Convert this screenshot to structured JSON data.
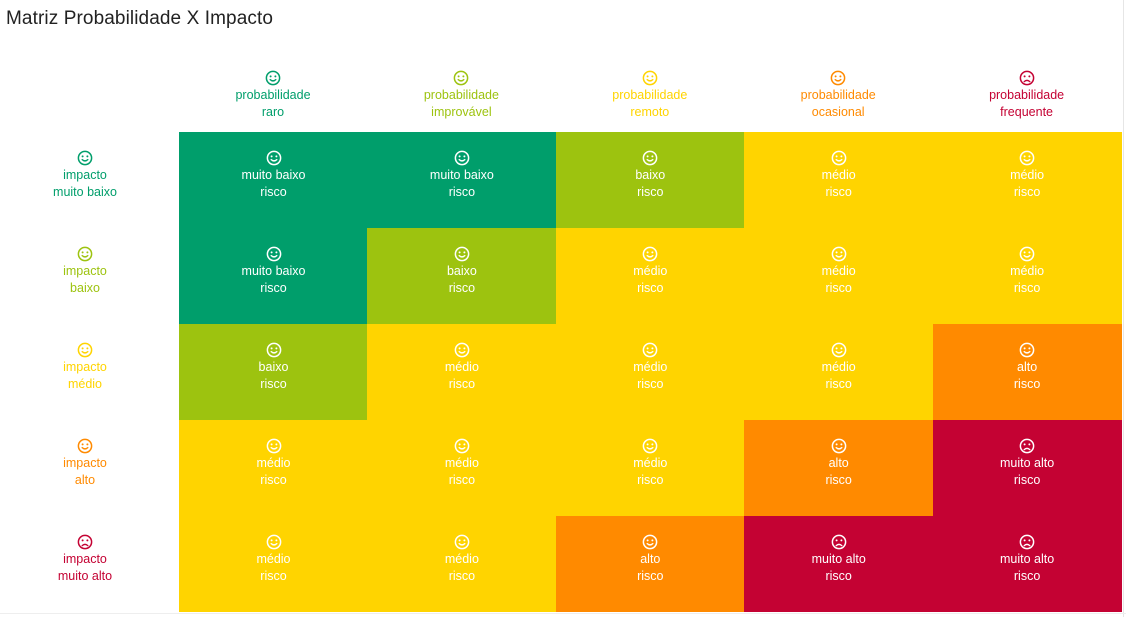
{
  "title": "Matriz Probabilidade X Impacto",
  "colors": {
    "muito_baixo": "#009E6B",
    "baixo": "#9DC30F",
    "medio": "#FFD400",
    "alto": "#FF8A00",
    "muito_alto": "#C40233"
  },
  "columns": [
    {
      "line1": "probabilidade",
      "line2": "raro",
      "level": "muito_baixo",
      "face": "smile"
    },
    {
      "line1": "probabilidade",
      "line2": "improvável",
      "level": "baixo",
      "face": "smile"
    },
    {
      "line1": "probabilidade",
      "line2": "remoto",
      "level": "medio",
      "face": "smile"
    },
    {
      "line1": "probabilidade",
      "line2": "ocasional",
      "level": "alto",
      "face": "smile"
    },
    {
      "line1": "probabilidade",
      "line2": "frequente",
      "level": "muito_alto",
      "face": "frown"
    }
  ],
  "rows": [
    {
      "line1": "impacto",
      "line2": "muito baixo",
      "level": "muito_baixo",
      "face": "smile"
    },
    {
      "line1": "impacto",
      "line2": "baixo",
      "level": "baixo",
      "face": "smile"
    },
    {
      "line1": "impacto",
      "line2": "médio",
      "level": "medio",
      "face": "smile"
    },
    {
      "line1": "impacto",
      "line2": "alto",
      "level": "alto",
      "face": "smile"
    },
    {
      "line1": "impacto",
      "line2": "muito alto",
      "level": "muito_alto",
      "face": "frown"
    }
  ],
  "risk_suffix": "risco",
  "level_labels": {
    "muito_baixo": "muito baixo",
    "baixo": "baixo",
    "medio": "médio",
    "alto": "alto",
    "muito_alto": "muito alto"
  },
  "chart_data": {
    "type": "heatmap",
    "title": "Matriz Probabilidade X Impacto",
    "x_categories": [
      "probabilidade raro",
      "probabilidade improvável",
      "probabilidade remoto",
      "probabilidade ocasional",
      "probabilidade frequente"
    ],
    "y_categories": [
      "impacto muito baixo",
      "impacto baixo",
      "impacto médio",
      "impacto alto",
      "impacto muito alto"
    ],
    "cells": [
      [
        {
          "label": "muito baixo",
          "sub": "risco",
          "level": "muito_baixo",
          "face": "smile"
        },
        {
          "label": "muito baixo",
          "sub": "risco",
          "level": "muito_baixo",
          "face": "smile"
        },
        {
          "label": "baixo",
          "sub": "risco",
          "level": "baixo",
          "face": "smile"
        },
        {
          "label": "médio",
          "sub": "risco",
          "level": "medio",
          "face": "smile"
        },
        {
          "label": "médio",
          "sub": "risco",
          "level": "medio",
          "face": "smile"
        }
      ],
      [
        {
          "label": "muito baixo",
          "sub": "risco",
          "level": "muito_baixo",
          "face": "smile"
        },
        {
          "label": "baixo",
          "sub": "risco",
          "level": "baixo",
          "face": "smile"
        },
        {
          "label": "médio",
          "sub": "risco",
          "level": "medio",
          "face": "smile"
        },
        {
          "label": "médio",
          "sub": "risco",
          "level": "medio",
          "face": "smile"
        },
        {
          "label": "médio",
          "sub": "risco",
          "level": "medio",
          "face": "smile"
        }
      ],
      [
        {
          "label": "baixo",
          "sub": "risco",
          "level": "baixo",
          "face": "smile"
        },
        {
          "label": "médio",
          "sub": "risco",
          "level": "medio",
          "face": "smile"
        },
        {
          "label": "médio",
          "sub": "risco",
          "level": "medio",
          "face": "smile"
        },
        {
          "label": "médio",
          "sub": "risco",
          "level": "medio",
          "face": "smile"
        },
        {
          "label": "alto",
          "sub": "risco",
          "level": "alto",
          "face": "smile"
        }
      ],
      [
        {
          "label": "médio",
          "sub": "risco",
          "level": "medio",
          "face": "smile"
        },
        {
          "label": "médio",
          "sub": "risco",
          "level": "medio",
          "face": "smile"
        },
        {
          "label": "médio",
          "sub": "risco",
          "level": "medio",
          "face": "smile"
        },
        {
          "label": "alto",
          "sub": "risco",
          "level": "alto",
          "face": "smile"
        },
        {
          "label": "muito alto",
          "sub": "risco",
          "level": "muito_alto",
          "face": "frown"
        }
      ],
      [
        {
          "label": "médio",
          "sub": "risco",
          "level": "medio",
          "face": "smile"
        },
        {
          "label": "médio",
          "sub": "risco",
          "level": "medio",
          "face": "smile"
        },
        {
          "label": "alto",
          "sub": "risco",
          "level": "alto",
          "face": "smile"
        },
        {
          "label": "muito alto",
          "sub": "risco",
          "level": "muito_alto",
          "face": "frown"
        },
        {
          "label": "muito alto",
          "sub": "risco",
          "level": "muito_alto",
          "face": "frown"
        }
      ]
    ]
  }
}
